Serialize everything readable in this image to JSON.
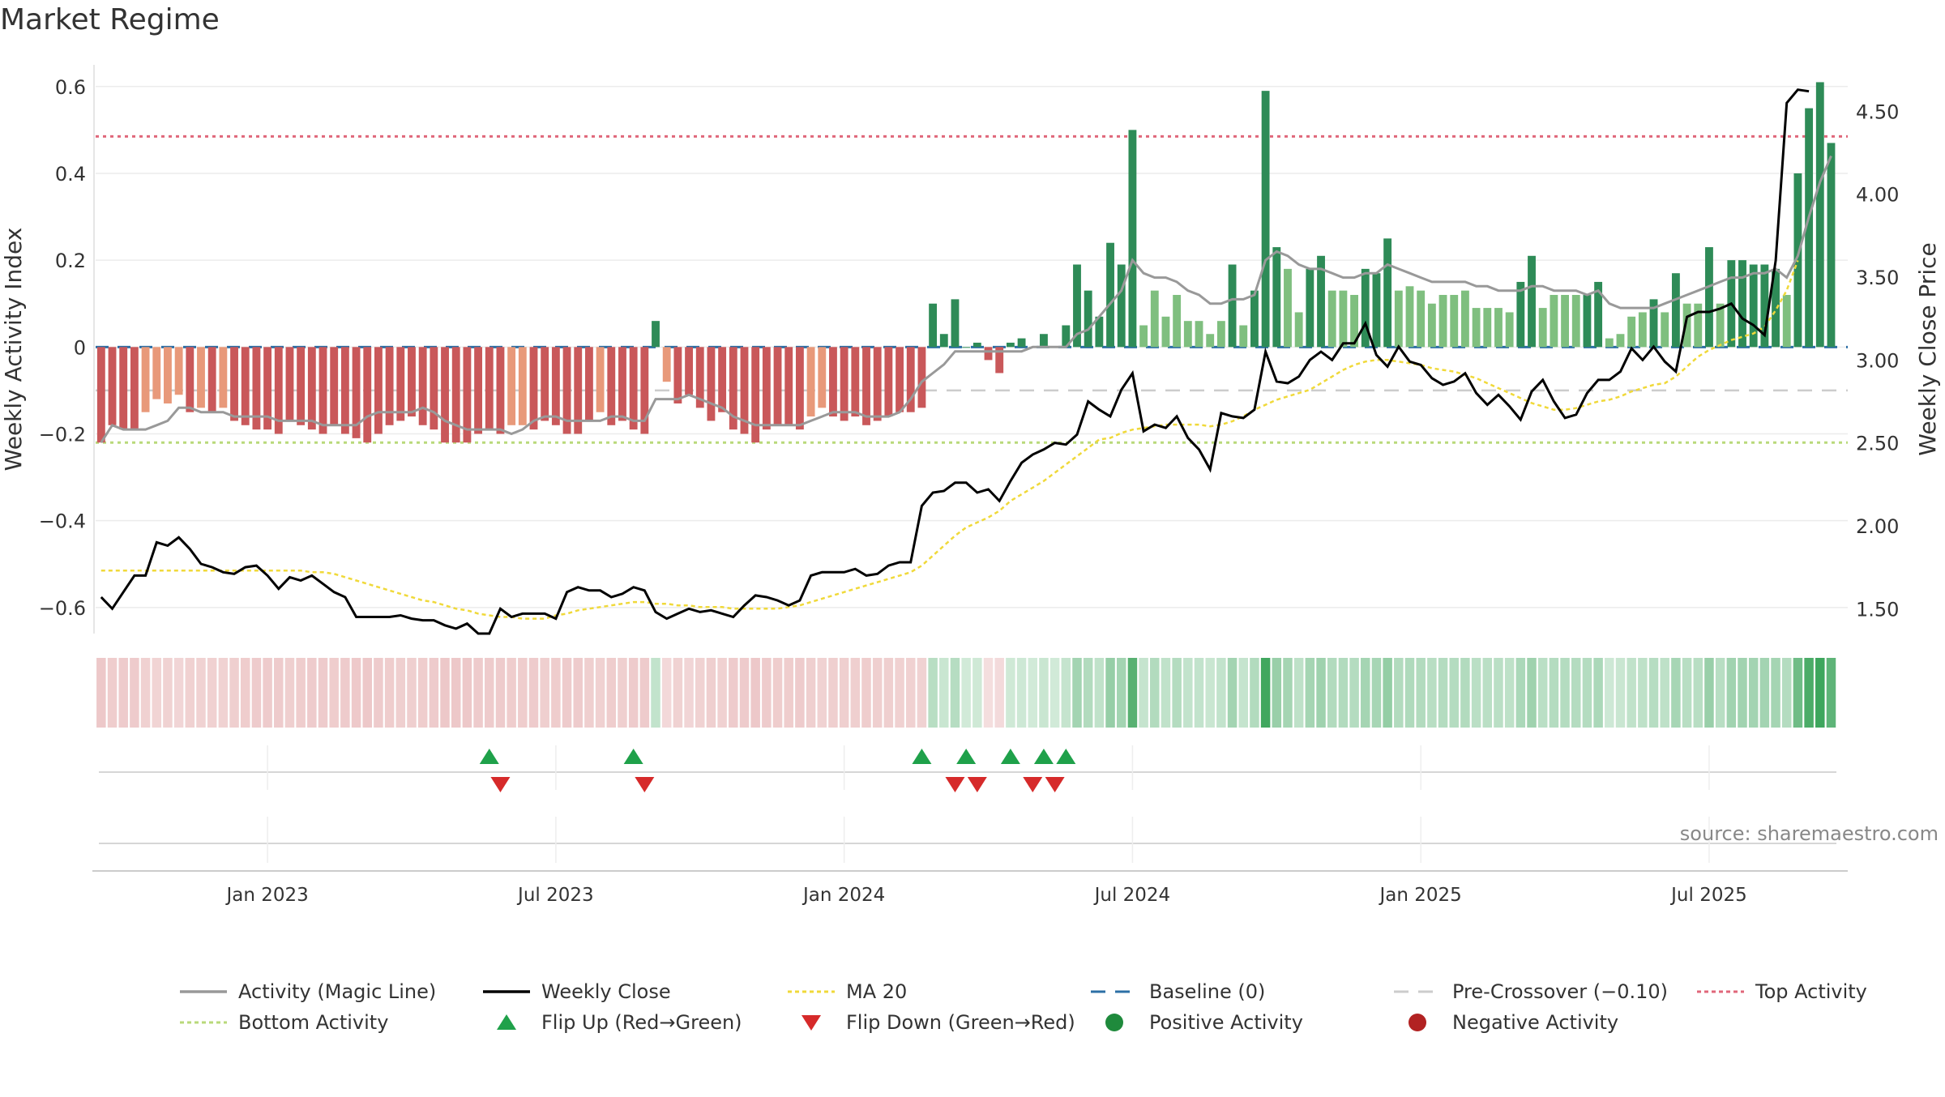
{
  "chart_data": {
    "type": "bar",
    "title": "Market Regime",
    "source": "source: sharemaestro.com",
    "ylabel": "Weekly Activity Index",
    "y2label": "Weekly Close Price",
    "ylim": [
      -0.66,
      0.65
    ],
    "y2lim": [
      1.35,
      4.78
    ],
    "yticks": [
      0.6,
      0.4,
      0.2,
      0,
      -0.2,
      -0.4,
      -0.6
    ],
    "ytick_labels": [
      "0.6",
      "0.4",
      "0.2",
      "0",
      "−0.2",
      "−0.4",
      "−0.6"
    ],
    "y2ticks": [
      4.5,
      4.0,
      3.5,
      3.0,
      2.5,
      2.0,
      1.5
    ],
    "y2tick_labels": [
      "4.50",
      "4.00",
      "3.50",
      "3.00",
      "2.50",
      "2.00",
      "1.50"
    ],
    "xticks": [
      {
        "label": "Jan 2023",
        "week": 15
      },
      {
        "label": "Jul 2023",
        "week": 41
      },
      {
        "label": "Jan 2024",
        "week": 67
      },
      {
        "label": "Jul 2024",
        "week": 93
      },
      {
        "label": "Jan 2025",
        "week": 119
      },
      {
        "label": "Jul 2025",
        "week": 145
      }
    ],
    "weeks": 158,
    "reference_lines": {
      "baseline": 0,
      "pre_crossover": -0.1,
      "top": 0.485,
      "bottom": -0.22
    },
    "activity": [
      -0.22,
      -0.18,
      -0.19,
      -0.19,
      -0.15,
      -0.12,
      -0.13,
      -0.11,
      -0.15,
      -0.14,
      -0.15,
      -0.14,
      -0.17,
      -0.18,
      -0.19,
      -0.19,
      -0.2,
      -0.17,
      -0.18,
      -0.19,
      -0.2,
      -0.18,
      -0.2,
      -0.21,
      -0.22,
      -0.2,
      -0.18,
      -0.17,
      -0.16,
      -0.18,
      -0.19,
      -0.22,
      -0.22,
      -0.22,
      -0.2,
      -0.19,
      -0.2,
      -0.18,
      -0.18,
      -0.19,
      -0.17,
      -0.18,
      -0.2,
      -0.2,
      -0.17,
      -0.15,
      -0.18,
      -0.17,
      -0.19,
      -0.2,
      0.06,
      -0.08,
      -0.13,
      -0.11,
      -0.14,
      -0.17,
      -0.15,
      -0.19,
      -0.2,
      -0.22,
      -0.19,
      -0.18,
      -0.18,
      -0.19,
      -0.16,
      -0.14,
      -0.16,
      -0.17,
      -0.16,
      -0.18,
      -0.17,
      -0.16,
      -0.15,
      -0.15,
      -0.14,
      0.1,
      0.03,
      0.11,
      0.0,
      0.01,
      -0.03,
      -0.06,
      0.01,
      0.02,
      0.0,
      0.03,
      0.0,
      0.05,
      0.19,
      0.13,
      0.07,
      0.24,
      0.19,
      0.5,
      0.05,
      0.13,
      0.07,
      0.12,
      0.06,
      0.06,
      0.03,
      0.06,
      0.19,
      0.05,
      0.13,
      0.59,
      0.23,
      0.18,
      0.08,
      0.18,
      0.21,
      0.13,
      0.13,
      0.12,
      0.18,
      0.17,
      0.25,
      0.13,
      0.14,
      0.13,
      0.1,
      0.12,
      0.12,
      0.13,
      0.09,
      0.09,
      0.09,
      0.08,
      0.15,
      0.21,
      0.09,
      0.12,
      0.12,
      0.12,
      0.12,
      0.15,
      0.02,
      0.03,
      0.07,
      0.08,
      0.11,
      0.08,
      0.17,
      0.1,
      0.1,
      0.23,
      0.1,
      0.2,
      0.2,
      0.19,
      0.19,
      0.18,
      0.12,
      0.4,
      0.55,
      0.61,
      0.47
    ],
    "magic_line": [
      -0.22,
      -0.18,
      -0.19,
      -0.19,
      -0.19,
      -0.18,
      -0.17,
      -0.14,
      -0.14,
      -0.15,
      -0.15,
      -0.15,
      -0.16,
      -0.16,
      -0.16,
      -0.16,
      -0.17,
      -0.17,
      -0.17,
      -0.17,
      -0.18,
      -0.18,
      -0.18,
      -0.18,
      -0.16,
      -0.15,
      -0.15,
      -0.15,
      -0.15,
      -0.14,
      -0.15,
      -0.17,
      -0.18,
      -0.19,
      -0.19,
      -0.19,
      -0.19,
      -0.2,
      -0.19,
      -0.17,
      -0.16,
      -0.16,
      -0.17,
      -0.17,
      -0.17,
      -0.17,
      -0.16,
      -0.16,
      -0.17,
      -0.17,
      -0.12,
      -0.12,
      -0.12,
      -0.11,
      -0.12,
      -0.13,
      -0.14,
      -0.16,
      -0.17,
      -0.18,
      -0.18,
      -0.18,
      -0.18,
      -0.18,
      -0.17,
      -0.16,
      -0.15,
      -0.15,
      -0.15,
      -0.16,
      -0.16,
      -0.16,
      -0.15,
      -0.12,
      -0.08,
      -0.06,
      -0.04,
      -0.01,
      -0.01,
      -0.01,
      -0.01,
      -0.01,
      -0.01,
      -0.01,
      0.0,
      0.0,
      0.0,
      0.0,
      0.03,
      0.04,
      0.07,
      0.1,
      0.13,
      0.2,
      0.17,
      0.16,
      0.16,
      0.15,
      0.13,
      0.12,
      0.1,
      0.1,
      0.11,
      0.11,
      0.12,
      0.2,
      0.22,
      0.21,
      0.19,
      0.18,
      0.18,
      0.17,
      0.16,
      0.16,
      0.17,
      0.17,
      0.19,
      0.18,
      0.17,
      0.16,
      0.15,
      0.15,
      0.15,
      0.15,
      0.14,
      0.14,
      0.13,
      0.13,
      0.13,
      0.14,
      0.14,
      0.13,
      0.13,
      0.13,
      0.12,
      0.13,
      0.1,
      0.09,
      0.09,
      0.09,
      0.09,
      0.1,
      0.11,
      0.12,
      0.13,
      0.14,
      0.15,
      0.16,
      0.16,
      0.17,
      0.17,
      0.18,
      0.16,
      0.21,
      0.3,
      0.38,
      0.44
    ],
    "weekly_close": [
      1.57,
      1.5,
      1.6,
      1.7,
      1.7,
      1.9,
      1.88,
      1.93,
      1.86,
      1.77,
      1.75,
      1.72,
      1.71,
      1.75,
      1.76,
      1.7,
      1.62,
      1.69,
      1.67,
      1.7,
      1.65,
      1.6,
      1.57,
      1.45,
      1.45,
      1.45,
      1.45,
      1.46,
      1.44,
      1.43,
      1.43,
      1.4,
      1.38,
      1.41,
      1.35,
      1.35,
      1.5,
      1.45,
      1.47,
      1.47,
      1.47,
      1.44,
      1.6,
      1.63,
      1.61,
      1.61,
      1.57,
      1.59,
      1.63,
      1.61,
      1.48,
      1.44,
      1.47,
      1.5,
      1.48,
      1.49,
      1.47,
      1.45,
      1.52,
      1.58,
      1.57,
      1.55,
      1.52,
      1.55,
      1.7,
      1.72,
      1.72,
      1.72,
      1.74,
      1.7,
      1.71,
      1.76,
      1.78,
      1.78,
      2.12,
      2.2,
      2.21,
      2.26,
      2.26,
      2.2,
      2.22,
      2.15,
      2.27,
      2.38,
      2.43,
      2.46,
      2.5,
      2.49,
      2.55,
      2.75,
      2.7,
      2.66,
      2.82,
      2.92,
      2.57,
      2.61,
      2.59,
      2.66,
      2.53,
      2.46,
      2.34,
      2.68,
      2.66,
      2.65,
      2.7,
      3.05,
      2.87,
      2.86,
      2.9,
      3.0,
      3.05,
      3.0,
      3.1,
      3.1,
      3.22,
      3.03,
      2.96,
      3.08,
      2.99,
      2.97,
      2.89,
      2.85,
      2.87,
      2.92,
      2.8,
      2.73,
      2.79,
      2.72,
      2.64,
      2.81,
      2.88,
      2.75,
      2.65,
      2.67,
      2.8,
      2.88,
      2.88,
      2.93,
      3.07,
      3.0,
      3.08,
      2.99,
      2.93,
      3.26,
      3.29,
      3.29,
      3.31,
      3.34,
      3.25,
      3.21,
      3.15,
      3.6,
      4.55,
      4.63,
      4.62
    ],
    "ma20": [
      1.73,
      1.73,
      1.73,
      1.73,
      1.73,
      1.73,
      1.73,
      1.73,
      1.73,
      1.73,
      1.73,
      1.73,
      1.73,
      1.73,
      1.73,
      1.73,
      1.73,
      1.73,
      1.73,
      1.72,
      1.72,
      1.71,
      1.69,
      1.67,
      1.65,
      1.63,
      1.61,
      1.59,
      1.57,
      1.55,
      1.54,
      1.52,
      1.5,
      1.49,
      1.47,
      1.46,
      1.45,
      1.45,
      1.44,
      1.44,
      1.44,
      1.46,
      1.47,
      1.49,
      1.5,
      1.51,
      1.52,
      1.53,
      1.54,
      1.54,
      1.53,
      1.53,
      1.52,
      1.52,
      1.51,
      1.51,
      1.51,
      1.5,
      1.5,
      1.5,
      1.5,
      1.5,
      1.51,
      1.52,
      1.54,
      1.56,
      1.58,
      1.6,
      1.62,
      1.64,
      1.66,
      1.68,
      1.7,
      1.72,
      1.76,
      1.82,
      1.88,
      1.94,
      1.99,
      2.02,
      2.05,
      2.09,
      2.15,
      2.19,
      2.23,
      2.27,
      2.32,
      2.37,
      2.42,
      2.47,
      2.52,
      2.53,
      2.56,
      2.58,
      2.59,
      2.6,
      2.61,
      2.61,
      2.61,
      2.61,
      2.6,
      2.61,
      2.63,
      2.66,
      2.7,
      2.73,
      2.76,
      2.78,
      2.8,
      2.82,
      2.86,
      2.9,
      2.94,
      2.97,
      2.99,
      3.0,
      3.0,
      2.99,
      2.98,
      2.97,
      2.95,
      2.94,
      2.93,
      2.91,
      2.89,
      2.86,
      2.83,
      2.8,
      2.77,
      2.74,
      2.72,
      2.7,
      2.7,
      2.71,
      2.73,
      2.75,
      2.76,
      2.78,
      2.81,
      2.83,
      2.85,
      2.86,
      2.9,
      2.96,
      3.02,
      3.06,
      3.09,
      3.12,
      3.14,
      3.16,
      3.2,
      3.3,
      3.42,
      3.6
    ],
    "flips_up": [
      35,
      48,
      74,
      78,
      82,
      85,
      87
    ],
    "flips_down": [
      36,
      49,
      77,
      79,
      84,
      86
    ],
    "legend": [
      {
        "label": "Activity (Magic Line)",
        "symbol": "line",
        "color": "#999999"
      },
      {
        "label": "Weekly Close",
        "symbol": "line",
        "color": "#000000"
      },
      {
        "label": "MA 20",
        "symbol": "dotted",
        "color": "#f0d93a"
      },
      {
        "label": "Baseline (0)",
        "symbol": "dashed",
        "color": "#2c6fa6"
      },
      {
        "label": "Pre-Crossover (−0.10)",
        "symbol": "dashed",
        "color": "#cccccc"
      },
      {
        "label": "Top Activity",
        "symbol": "dotted",
        "color": "#e0677a"
      },
      {
        "label": "Bottom Activity",
        "symbol": "dotted",
        "color": "#b9d97a"
      },
      {
        "label": "Flip Up (Red→Green)",
        "symbol": "triangle-up",
        "color": "#1fa14a"
      },
      {
        "label": "Flip Down (Green→Red)",
        "symbol": "triangle-down",
        "color": "#d62a2a"
      },
      {
        "label": "Positive Activity",
        "symbol": "circle",
        "color": "#1f8a3c"
      },
      {
        "label": "Negative Activity",
        "symbol": "circle",
        "color": "#b22222"
      }
    ],
    "colors": {
      "pos_dark": "#2e8b57",
      "pos_light": "#7fbf7f",
      "neg_dark": "#c9585a",
      "neg_light": "#e8997a",
      "magic_line": "#999999",
      "close": "#000000",
      "ma20": "#f0d93a",
      "baseline": "#2c6fa6",
      "pre": "#cccccc",
      "top": "#e0677a",
      "bottom": "#b9d97a",
      "flip_up": "#1fa14a",
      "flip_down": "#d62a2a"
    }
  }
}
